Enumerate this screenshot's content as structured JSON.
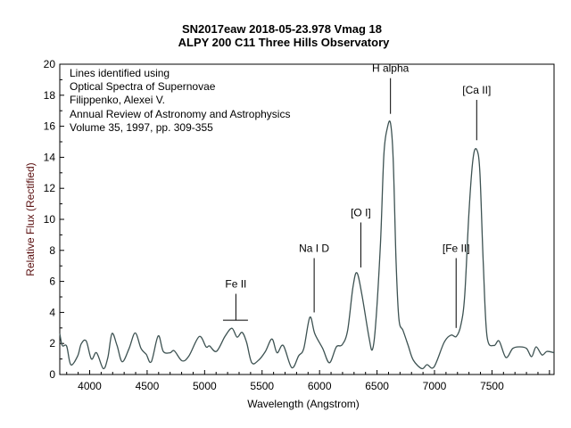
{
  "chart_data": {
    "type": "line",
    "title": "SN2017eaw   2018-05-23.978   Vmag 18",
    "subtitle": "ALPY 200  C11 Three Hills Observatory",
    "xlabel": "Wavelength (Angstrom)",
    "ylabel": "Relative Flux (Rectified)",
    "xlim": [
      3740,
      8040
    ],
    "ylim": [
      0,
      20
    ],
    "xticks": [
      4000,
      4500,
      5000,
      5500,
      6000,
      6500,
      7000,
      7500
    ],
    "yticks": [
      0,
      2,
      4,
      6,
      8,
      10,
      12,
      14,
      16,
      18,
      20
    ],
    "grid": false,
    "line_color": "#3d5252",
    "notes": [
      "Lines identified using",
      "Optical Spectra of Supernovae",
      "Filippenko, Alexei V.",
      "Annual Review of Astronomy and Astrophysics",
      "Volume 35, 1997, pp. 309-355"
    ],
    "line_ids": [
      {
        "label": "Fe II",
        "wavelength": 5272,
        "bracket": [
          5160,
          5377
        ],
        "from": 3.5,
        "to": 5.2
      },
      {
        "label": "Na I D",
        "wavelength": 5953,
        "from": 4.0,
        "to": 7.5
      },
      {
        "label": "[O I]",
        "wavelength": 6359,
        "from": 6.9,
        "to": 9.8
      },
      {
        "label": "H alpha",
        "wavelength": 6617,
        "from": 16.8,
        "to": 19.1
      },
      {
        "label": "[Fe II]",
        "wavelength": 7188,
        "from": 3.0,
        "to": 7.5
      },
      {
        "label": "[Ca II]",
        "wavelength": 7367,
        "from": 15.1,
        "to": 17.7
      }
    ],
    "x": [
      3740,
      3762,
      3800,
      3836,
      3896,
      3926,
      3970,
      4015,
      4060,
      4119,
      4158,
      4194,
      4238,
      4283,
      4343,
      4396,
      4447,
      4492,
      4536,
      4596,
      4640,
      4700,
      4736,
      4804,
      4864,
      4953,
      5013,
      5043,
      5103,
      5177,
      5237,
      5282,
      5326,
      5365,
      5410,
      5469,
      5529,
      5586,
      5630,
      5684,
      5758,
      5818,
      5863,
      5916,
      5958,
      6027,
      6086,
      6146,
      6196,
      6244,
      6290,
      6325,
      6369,
      6429,
      6459,
      6488,
      6530,
      6560,
      6590,
      6617,
      6640,
      6665,
      6690,
      6727,
      6771,
      6816,
      6890,
      6935,
      6995,
      7084,
      7144,
      7189,
      7230,
      7263,
      7300,
      7335,
      7367,
      7395,
      7425,
      7457,
      7517,
      7562,
      7621,
      7681,
      7741,
      7800,
      7845,
      7884,
      7935,
      7979,
      8040
    ],
    "y": [
      2.64,
      1.87,
      1.83,
      0.63,
      1.2,
      1.97,
      2.16,
      1.0,
      1.4,
      0.38,
      1.1,
      2.64,
      1.87,
      0.82,
      1.68,
      2.68,
      1.68,
      1.3,
      0.82,
      2.49,
      1.49,
      1.4,
      1.53,
      0.88,
      1.2,
      2.45,
      1.78,
      1.84,
      1.49,
      2.45,
      2.98,
      2.41,
      2.72,
      2.07,
      0.76,
      0.92,
      1.49,
      2.29,
      1.4,
      1.87,
      0.44,
      1.2,
      1.68,
      3.69,
      2.64,
      1.68,
      0.76,
      1.78,
      1.91,
      2.83,
      5.6,
      6.56,
      5.12,
      2.45,
      1.59,
      3.21,
      8.5,
      14.2,
      15.9,
      16.2,
      14.0,
      7.5,
      3.6,
      2.83,
      1.87,
      0.92,
      0.38,
      0.63,
      0.48,
      2.07,
      2.54,
      2.45,
      3.2,
      5.12,
      10.5,
      13.9,
      14.5,
      13.0,
      7.0,
      2.45,
      1.87,
      2.16,
      1.1,
      1.68,
      1.78,
      1.68,
      1.15,
      1.78,
      1.26,
      1.49,
      1.4
    ]
  }
}
